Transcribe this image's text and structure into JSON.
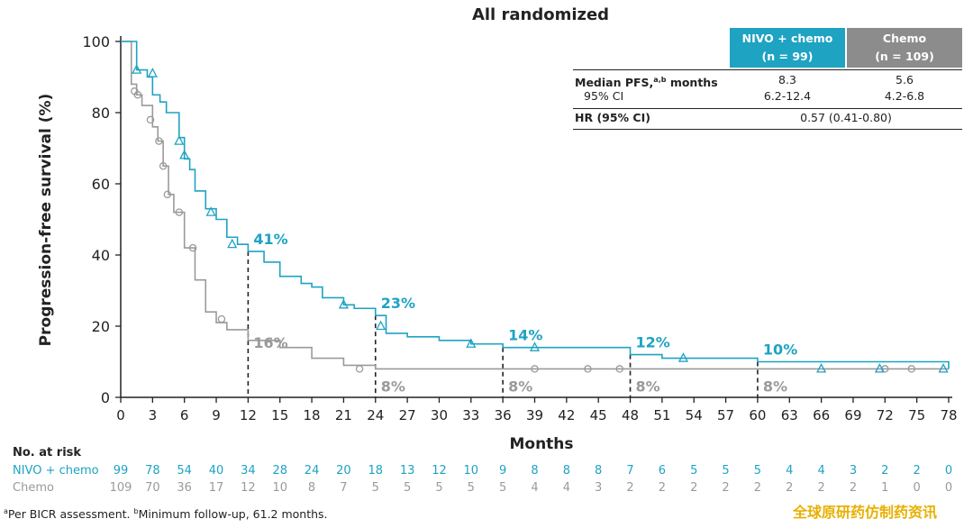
{
  "chart_data": {
    "type": "line",
    "title": "All randomized",
    "xlabel": "Months",
    "ylabel": "Progression-free survival (%)",
    "xlim": [
      0,
      78
    ],
    "ylim": [
      0,
      100
    ],
    "x_ticks": [
      "0",
      "3",
      "6",
      "9",
      "12",
      "15",
      "18",
      "21",
      "24",
      "27",
      "30",
      "33",
      "36",
      "39",
      "42",
      "45",
      "48",
      "51",
      "54",
      "57",
      "60",
      "63",
      "66",
      "69",
      "72",
      "75",
      "78"
    ],
    "y_ticks": [
      "0",
      "20",
      "40",
      "60",
      "80",
      "100"
    ],
    "colors": {
      "nivo": "#1ea3c2",
      "chemo": "#9a9a9a"
    },
    "series": [
      {
        "name": "NIVO + chemo",
        "marker": "triangle",
        "x": [
          0,
          1.5,
          2.5,
          3,
          3.7,
          4.3,
          5.5,
          6,
          6.5,
          7,
          8,
          9,
          10,
          11,
          12,
          13.5,
          15,
          17,
          18,
          19,
          21,
          22,
          24,
          25,
          27,
          30,
          33,
          36,
          42,
          48,
          51,
          60,
          78
        ],
        "y": [
          100,
          92,
          90,
          85,
          83,
          80,
          73,
          67,
          64,
          58,
          53,
          50,
          45,
          43,
          41,
          38,
          34,
          32,
          31,
          28,
          26,
          25,
          23,
          18,
          17,
          16,
          15,
          14,
          14,
          12,
          11,
          10,
          8
        ],
        "censor_x": [
          1.5,
          3,
          5.5,
          6,
          8.5,
          10.5,
          21,
          24.5,
          33,
          39,
          53,
          66,
          71.5,
          77.5
        ],
        "censor_y": [
          92,
          91,
          72,
          68,
          52,
          43,
          26,
          20,
          15,
          14,
          11,
          8,
          8,
          8
        ]
      },
      {
        "name": "Chemo",
        "marker": "circle",
        "x": [
          0,
          1,
          1.5,
          2,
          3,
          3.5,
          4,
          4.5,
          5,
          6,
          7,
          8,
          9,
          10,
          12,
          15,
          18,
          21,
          24,
          78
        ],
        "y": [
          100,
          88,
          85,
          82,
          76,
          72,
          65,
          57,
          52,
          42,
          33,
          24,
          21,
          19,
          16,
          14,
          11,
          9,
          8,
          8
        ],
        "censor_x": [
          1.3,
          1.6,
          2.8,
          3.6,
          4,
          4.4,
          5.5,
          6.8,
          9.5,
          22.5,
          39,
          44,
          47,
          72,
          74.5
        ],
        "censor_y": [
          86,
          85,
          78,
          72,
          65,
          57,
          52,
          42,
          22,
          8,
          8,
          8,
          8,
          8,
          8
        ]
      }
    ],
    "landmarks": [
      {
        "x": 12,
        "nivo": "41%",
        "chemo": "16%",
        "nivo_y": 41,
        "chemo_y": 16
      },
      {
        "x": 24,
        "nivo": "23%",
        "chemo": "8%",
        "nivo_y": 23,
        "chemo_y": 8
      },
      {
        "x": 36,
        "nivo": "14%",
        "chemo": "8%",
        "nivo_y": 14,
        "chemo_y": 8
      },
      {
        "x": 48,
        "nivo": "12%",
        "chemo": "8%",
        "nivo_y": 12,
        "chemo_y": 8
      },
      {
        "x": 60,
        "nivo": "10%",
        "chemo": "8%",
        "nivo_y": 10,
        "chemo_y": 8
      }
    ],
    "at_risk": {
      "label": "No. at risk",
      "rows": [
        {
          "name": "NIVO + chemo",
          "values": [
            "99",
            "78",
            "54",
            "40",
            "34",
            "28",
            "24",
            "20",
            "18",
            "13",
            "12",
            "10",
            "9",
            "8",
            "8",
            "8",
            "7",
            "6",
            "5",
            "5",
            "5",
            "4",
            "4",
            "3",
            "2",
            "2",
            "0"
          ]
        },
        {
          "name": "Chemo",
          "values": [
            "109",
            "70",
            "36",
            "17",
            "12",
            "10",
            "8",
            "7",
            "5",
            "5",
            "5",
            "5",
            "5",
            "4",
            "4",
            "3",
            "2",
            "2",
            "2",
            "2",
            "2",
            "2",
            "2",
            "2",
            "1",
            "0",
            "0"
          ]
        }
      ]
    }
  },
  "stats_table": {
    "col_nivo": "NIVO + chemo",
    "col_nivo_n": "(n = 99)",
    "col_chemo": "Chemo",
    "col_chemo_n": "(n = 109)",
    "median_label": "Median PFS,",
    "median_sup": "a,b",
    "median_unit": " months",
    "median_nivo": "8.3",
    "median_chemo": "5.6",
    "ci_label": "95% CI",
    "ci_nivo": "6.2-12.4",
    "ci_chemo": "4.2-6.8",
    "hr_label": "HR (95% CI)",
    "hr_value": "0.57 (0.41-0.80)"
  },
  "footnote": {
    "a_sup": "a",
    "a_text": "Per BICR assessment. ",
    "b_sup": "b",
    "b_text": "Minimum follow-up, 61.2 months."
  },
  "watermark": "全球原研药仿制药资讯"
}
